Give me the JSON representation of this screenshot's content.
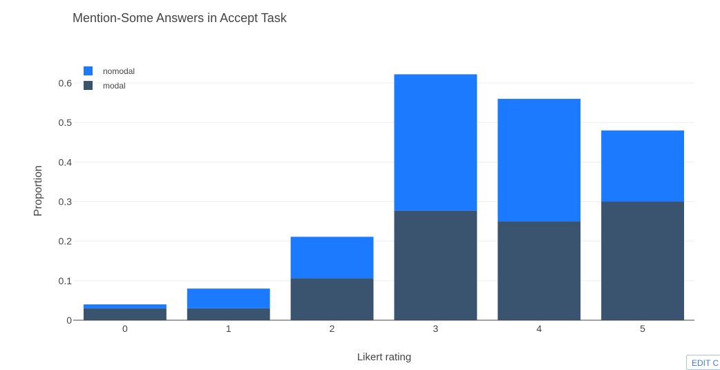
{
  "chart_data": {
    "type": "bar",
    "barmode": "stack",
    "title": "Mention-Some Answers in Accept Task",
    "xlabel": "Likert rating",
    "ylabel": "Proportion",
    "categories": [
      "0",
      "1",
      "2",
      "3",
      "4",
      "5"
    ],
    "series": [
      {
        "name": "modal",
        "values": [
          0.03,
          0.03,
          0.106,
          0.277,
          0.25,
          0.3
        ],
        "color": "#3a546f"
      },
      {
        "name": "nomodal",
        "values": [
          0.01,
          0.05,
          0.105,
          0.345,
          0.31,
          0.18
        ],
        "color": "#1c7afe"
      }
    ],
    "legend_order": [
      "nomodal",
      "modal"
    ],
    "ylim": [
      0,
      0.6
    ],
    "yticks": [
      0,
      0.1,
      0.2,
      0.3,
      0.4,
      0.5,
      0.6
    ],
    "ytick_labels": [
      "0",
      "0.1",
      "0.2",
      "0.3",
      "0.4",
      "0.5",
      "0.6"
    ],
    "grid": true,
    "legend_position": "top-left"
  },
  "toolbar": {
    "edit_label": "EDIT C"
  }
}
